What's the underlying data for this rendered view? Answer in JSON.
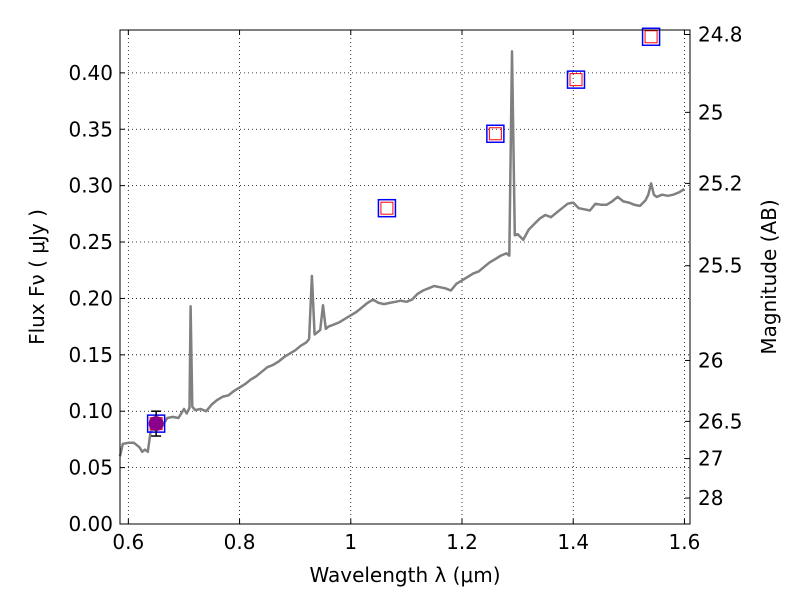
{
  "chart_data": {
    "type": "line",
    "xlabel": "Wavelength  λ (μm)",
    "ylabel": "Flux  Fν  ( μJy )",
    "y2label": "Magnitude (AB)",
    "xlim": [
      0.585,
      1.61
    ],
    "ylim": [
      0.0,
      0.438
    ],
    "x_ticks": [
      {
        "value": 0.6,
        "label": "0.6"
      },
      {
        "value": 0.8,
        "label": "0.8"
      },
      {
        "value": 1.0,
        "label": "1"
      },
      {
        "value": 1.2,
        "label": "1.2"
      },
      {
        "value": 1.4,
        "label": "1.4"
      },
      {
        "value": 1.6,
        "label": "1.6"
      }
    ],
    "y_ticks": [
      {
        "value": 0.0,
        "label": "0.00"
      },
      {
        "value": 0.05,
        "label": "0.05"
      },
      {
        "value": 0.1,
        "label": "0.10"
      },
      {
        "value": 0.15,
        "label": "0.15"
      },
      {
        "value": 0.2,
        "label": "0.20"
      },
      {
        "value": 0.25,
        "label": "0.25"
      },
      {
        "value": 0.3,
        "label": "0.30"
      },
      {
        "value": 0.35,
        "label": "0.35"
      },
      {
        "value": 0.4,
        "label": "0.40"
      }
    ],
    "y2_ticks": [
      {
        "flux": 0.434,
        "label": "24.8"
      },
      {
        "flux": 0.365,
        "label": "25"
      },
      {
        "flux": 0.302,
        "label": "25.2"
      },
      {
        "flux": 0.229,
        "label": "25.5"
      },
      {
        "flux": 0.145,
        "label": "26"
      },
      {
        "flux": 0.091,
        "label": "26.5"
      },
      {
        "flux": 0.058,
        "label": "27"
      },
      {
        "flux": 0.023,
        "label": "28"
      }
    ],
    "grid": true,
    "series": [
      {
        "kind": "line",
        "color": "#808080",
        "x": [
          0.585,
          0.59,
          0.6,
          0.61,
          0.62,
          0.625,
          0.63,
          0.635,
          0.64,
          0.65,
          0.66,
          0.67,
          0.68,
          0.69,
          0.7,
          0.705,
          0.71,
          0.712,
          0.715,
          0.72,
          0.73,
          0.74,
          0.75,
          0.76,
          0.77,
          0.78,
          0.79,
          0.8,
          0.81,
          0.82,
          0.83,
          0.84,
          0.85,
          0.86,
          0.87,
          0.88,
          0.89,
          0.9,
          0.91,
          0.92,
          0.925,
          0.93,
          0.935,
          0.94,
          0.945,
          0.95,
          0.955,
          0.96,
          0.97,
          0.98,
          0.99,
          1.0,
          1.01,
          1.02,
          1.03,
          1.04,
          1.05,
          1.06,
          1.07,
          1.08,
          1.09,
          1.1,
          1.11,
          1.12,
          1.13,
          1.14,
          1.15,
          1.16,
          1.17,
          1.18,
          1.19,
          1.2,
          1.21,
          1.22,
          1.23,
          1.24,
          1.25,
          1.26,
          1.27,
          1.28,
          1.285,
          1.29,
          1.295,
          1.3,
          1.31,
          1.32,
          1.33,
          1.34,
          1.35,
          1.36,
          1.37,
          1.38,
          1.39,
          1.4,
          1.41,
          1.42,
          1.43,
          1.44,
          1.45,
          1.46,
          1.47,
          1.48,
          1.49,
          1.5,
          1.51,
          1.52,
          1.53,
          1.535,
          1.54,
          1.545,
          1.55,
          1.56,
          1.57,
          1.58,
          1.59,
          1.6
        ],
        "y": [
          0.06,
          0.071,
          0.072,
          0.072,
          0.068,
          0.064,
          0.066,
          0.064,
          0.082,
          0.087,
          0.086,
          0.094,
          0.095,
          0.094,
          0.102,
          0.098,
          0.103,
          0.193,
          0.104,
          0.101,
          0.102,
          0.1,
          0.106,
          0.11,
          0.113,
          0.114,
          0.118,
          0.121,
          0.124,
          0.128,
          0.131,
          0.135,
          0.139,
          0.141,
          0.144,
          0.148,
          0.151,
          0.154,
          0.158,
          0.161,
          0.164,
          0.22,
          0.168,
          0.17,
          0.172,
          0.194,
          0.173,
          0.175,
          0.177,
          0.179,
          0.182,
          0.185,
          0.188,
          0.192,
          0.196,
          0.199,
          0.196,
          0.195,
          0.196,
          0.197,
          0.198,
          0.197,
          0.199,
          0.204,
          0.207,
          0.209,
          0.211,
          0.21,
          0.209,
          0.207,
          0.213,
          0.216,
          0.219,
          0.222,
          0.224,
          0.228,
          0.232,
          0.235,
          0.238,
          0.24,
          0.238,
          0.419,
          0.256,
          0.257,
          0.252,
          0.261,
          0.266,
          0.271,
          0.274,
          0.272,
          0.276,
          0.28,
          0.284,
          0.285,
          0.28,
          0.279,
          0.278,
          0.284,
          0.283,
          0.283,
          0.286,
          0.29,
          0.286,
          0.285,
          0.283,
          0.282,
          0.287,
          0.292,
          0.302,
          0.292,
          0.29,
          0.292,
          0.291,
          0.292,
          0.294,
          0.297
        ]
      }
    ],
    "markers": [
      {
        "name": "blue squares",
        "color": "#0000ff",
        "shape": "square",
        "points": [
          {
            "x": 0.65,
            "y": 0.089
          },
          {
            "x": 1.065,
            "y": 0.28
          },
          {
            "x": 1.26,
            "y": 0.346
          },
          {
            "x": 1.405,
            "y": 0.394
          },
          {
            "x": 1.54,
            "y": 0.432
          }
        ]
      },
      {
        "name": "red squares",
        "color": "#ff0000",
        "shape": "square",
        "points": [
          {
            "x": 0.65,
            "y": 0.089
          },
          {
            "x": 1.065,
            "y": 0.28
          },
          {
            "x": 1.26,
            "y": 0.346
          },
          {
            "x": 1.405,
            "y": 0.394
          },
          {
            "x": 1.54,
            "y": 0.432
          }
        ]
      },
      {
        "name": "magenta point",
        "color": "#8b008b",
        "shape": "circle",
        "points": [
          {
            "x": 0.65,
            "y": 0.089,
            "yerr": 0.011
          }
        ]
      }
    ]
  }
}
